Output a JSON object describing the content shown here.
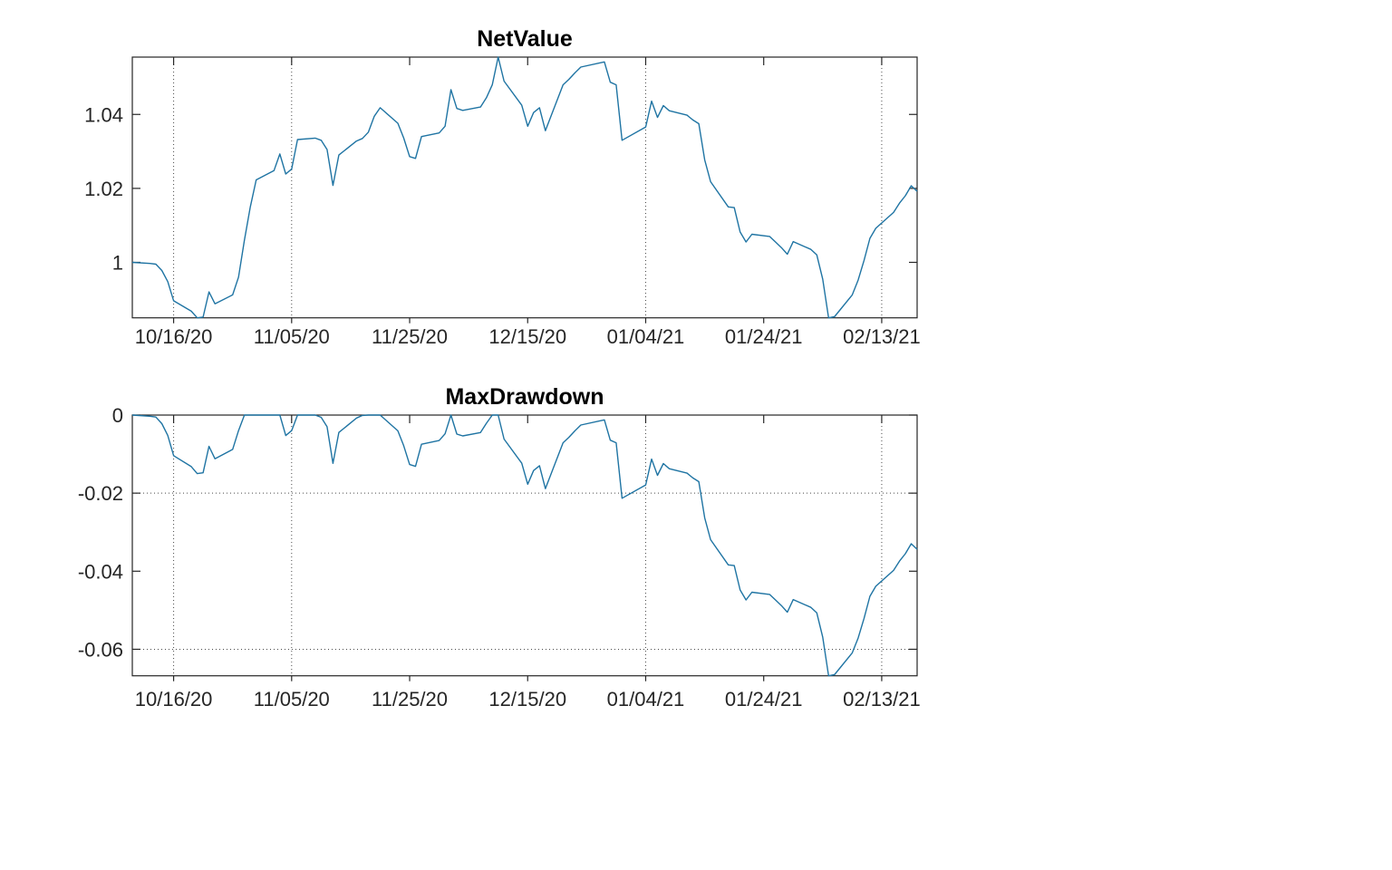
{
  "figure": {
    "background": "#ffffff",
    "line_color": "#1f74a3",
    "axis_color": "#262626",
    "grid_color": "#2b2b2b",
    "tick_label_color": "#262626",
    "title_color": "#000000"
  },
  "chart_data": [
    {
      "type": "line",
      "title": "NetValue",
      "xlabel": "",
      "ylabel": "",
      "xlim": [
        "2020-10-09",
        "2021-02-19"
      ],
      "ylim": [
        0.985,
        1.0555
      ],
      "grid": "vertical dotted at 10/16/20, 11/05/20, 01/04/21, 02/13/21",
      "legend": null,
      "xticks": [
        {
          "date": "2020-10-16",
          "label": "10/16/20"
        },
        {
          "date": "2020-11-05",
          "label": "11/05/20"
        },
        {
          "date": "2020-11-25",
          "label": "11/25/20"
        },
        {
          "date": "2020-12-15",
          "label": "12/15/20"
        },
        {
          "date": "2021-01-04",
          "label": "01/04/21"
        },
        {
          "date": "2021-01-24",
          "label": "01/24/21"
        },
        {
          "date": "2021-02-13",
          "label": "02/13/21"
        }
      ],
      "yticks": [
        {
          "value": 1.0,
          "label": "1"
        },
        {
          "value": 1.02,
          "label": "1.02"
        },
        {
          "value": 1.04,
          "label": "1.04"
        }
      ],
      "grid_x_dates": [
        "2020-10-16",
        "2020-11-05",
        "2021-01-04",
        "2021-02-13"
      ],
      "grid_y_values": [],
      "x": [
        "2020-10-09",
        "2020-10-12",
        "2020-10-13",
        "2020-10-14",
        "2020-10-15",
        "2020-10-16",
        "2020-10-19",
        "2020-10-20",
        "2020-10-21",
        "2020-10-22",
        "2020-10-23",
        "2020-10-26",
        "2020-10-27",
        "2020-10-28",
        "2020-10-29",
        "2020-10-30",
        "2020-11-02",
        "2020-11-03",
        "2020-11-04",
        "2020-11-05",
        "2020-11-06",
        "2020-11-09",
        "2020-11-10",
        "2020-11-11",
        "2020-11-12",
        "2020-11-13",
        "2020-11-16",
        "2020-11-17",
        "2020-11-18",
        "2020-11-19",
        "2020-11-20",
        "2020-11-23",
        "2020-11-24",
        "2020-11-25",
        "2020-11-26",
        "2020-11-27",
        "2020-11-30",
        "2020-12-01",
        "2020-12-02",
        "2020-12-03",
        "2020-12-04",
        "2020-12-07",
        "2020-12-08",
        "2020-12-09",
        "2020-12-10",
        "2020-12-11",
        "2020-12-14",
        "2020-12-15",
        "2020-12-16",
        "2020-12-17",
        "2020-12-18",
        "2020-12-21",
        "2020-12-22",
        "2020-12-23",
        "2020-12-24",
        "2020-12-28",
        "2020-12-29",
        "2020-12-30",
        "2020-12-31",
        "2021-01-04",
        "2021-01-05",
        "2021-01-06",
        "2021-01-07",
        "2021-01-08",
        "2021-01-11",
        "2021-01-12",
        "2021-01-13",
        "2021-01-14",
        "2021-01-15",
        "2021-01-18",
        "2021-01-19",
        "2021-01-20",
        "2021-01-21",
        "2021-01-22",
        "2021-01-25",
        "2021-01-26",
        "2021-01-27",
        "2021-01-28",
        "2021-01-29",
        "2021-02-01",
        "2021-02-02",
        "2021-02-03",
        "2021-02-04",
        "2021-02-05",
        "2021-02-08",
        "2021-02-09",
        "2021-02-10",
        "2021-02-11",
        "2021-02-12",
        "2021-02-15",
        "2021-02-16",
        "2021-02-17",
        "2021-02-18",
        "2021-02-19"
      ],
      "values": [
        1.0,
        0.9997,
        0.9995,
        0.9978,
        0.9948,
        0.9896,
        0.9868,
        0.985,
        0.9852,
        0.992,
        0.9888,
        0.9912,
        0.996,
        1.006,
        1.015,
        1.0223,
        1.0248,
        1.0293,
        1.0239,
        1.0252,
        1.0332,
        1.0336,
        1.033,
        1.0305,
        1.0208,
        1.029,
        1.0328,
        1.0335,
        1.0352,
        1.0395,
        1.0418,
        1.0376,
        1.0336,
        1.0286,
        1.0281,
        1.034,
        1.035,
        1.0368,
        1.0467,
        1.0416,
        1.0411,
        1.042,
        1.0445,
        1.048,
        1.0555,
        1.049,
        1.0425,
        1.0368,
        1.0405,
        1.0418,
        1.0356,
        1.048,
        1.0495,
        1.0512,
        1.0528,
        1.0542,
        1.0487,
        1.048,
        1.033,
        1.0366,
        1.0436,
        1.0392,
        1.0424,
        1.041,
        1.0398,
        1.0385,
        1.0375,
        1.0277,
        1.0218,
        1.015,
        1.0148,
        1.0082,
        1.0055,
        1.0076,
        1.007,
        1.0055,
        1.004,
        1.0022,
        1.0056,
        1.0035,
        1.002,
        0.9955,
        0.985,
        0.9853,
        0.9912,
        0.9952,
        1.0005,
        1.0065,
        1.0092,
        1.0135,
        1.016,
        1.018,
        1.0207,
        1.0192
      ]
    },
    {
      "type": "line",
      "title": "MaxDrawdown",
      "xlabel": "",
      "ylabel": "",
      "derived_from": "NetValue",
      "formula": "drawdown[i] = value[i] / max(value[0..i]) - 1",
      "xlim": [
        "2020-10-09",
        "2021-02-19"
      ],
      "ylim": [
        -0.0668,
        0
      ],
      "grid": "vertical dotted at 10/16/20, 11/05/20, 01/04/21, 02/13/21; horizontal dotted at 0, -0.02, -0.06",
      "legend": null,
      "xticks": [
        {
          "date": "2020-10-16",
          "label": "10/16/20"
        },
        {
          "date": "2020-11-05",
          "label": "11/05/20"
        },
        {
          "date": "2020-11-25",
          "label": "11/25/20"
        },
        {
          "date": "2020-12-15",
          "label": "12/15/20"
        },
        {
          "date": "2021-01-04",
          "label": "01/04/21"
        },
        {
          "date": "2021-01-24",
          "label": "01/24/21"
        },
        {
          "date": "2021-02-13",
          "label": "02/13/21"
        }
      ],
      "yticks": [
        {
          "value": 0,
          "label": "0"
        },
        {
          "value": -0.02,
          "label": "-0.02"
        },
        {
          "value": -0.04,
          "label": "-0.04"
        },
        {
          "value": -0.06,
          "label": "-0.06"
        }
      ],
      "grid_x_dates": [
        "2020-10-16",
        "2020-11-05",
        "2021-01-04",
        "2021-02-13"
      ],
      "grid_y_values": [
        0,
        -0.02,
        -0.06
      ]
    }
  ]
}
